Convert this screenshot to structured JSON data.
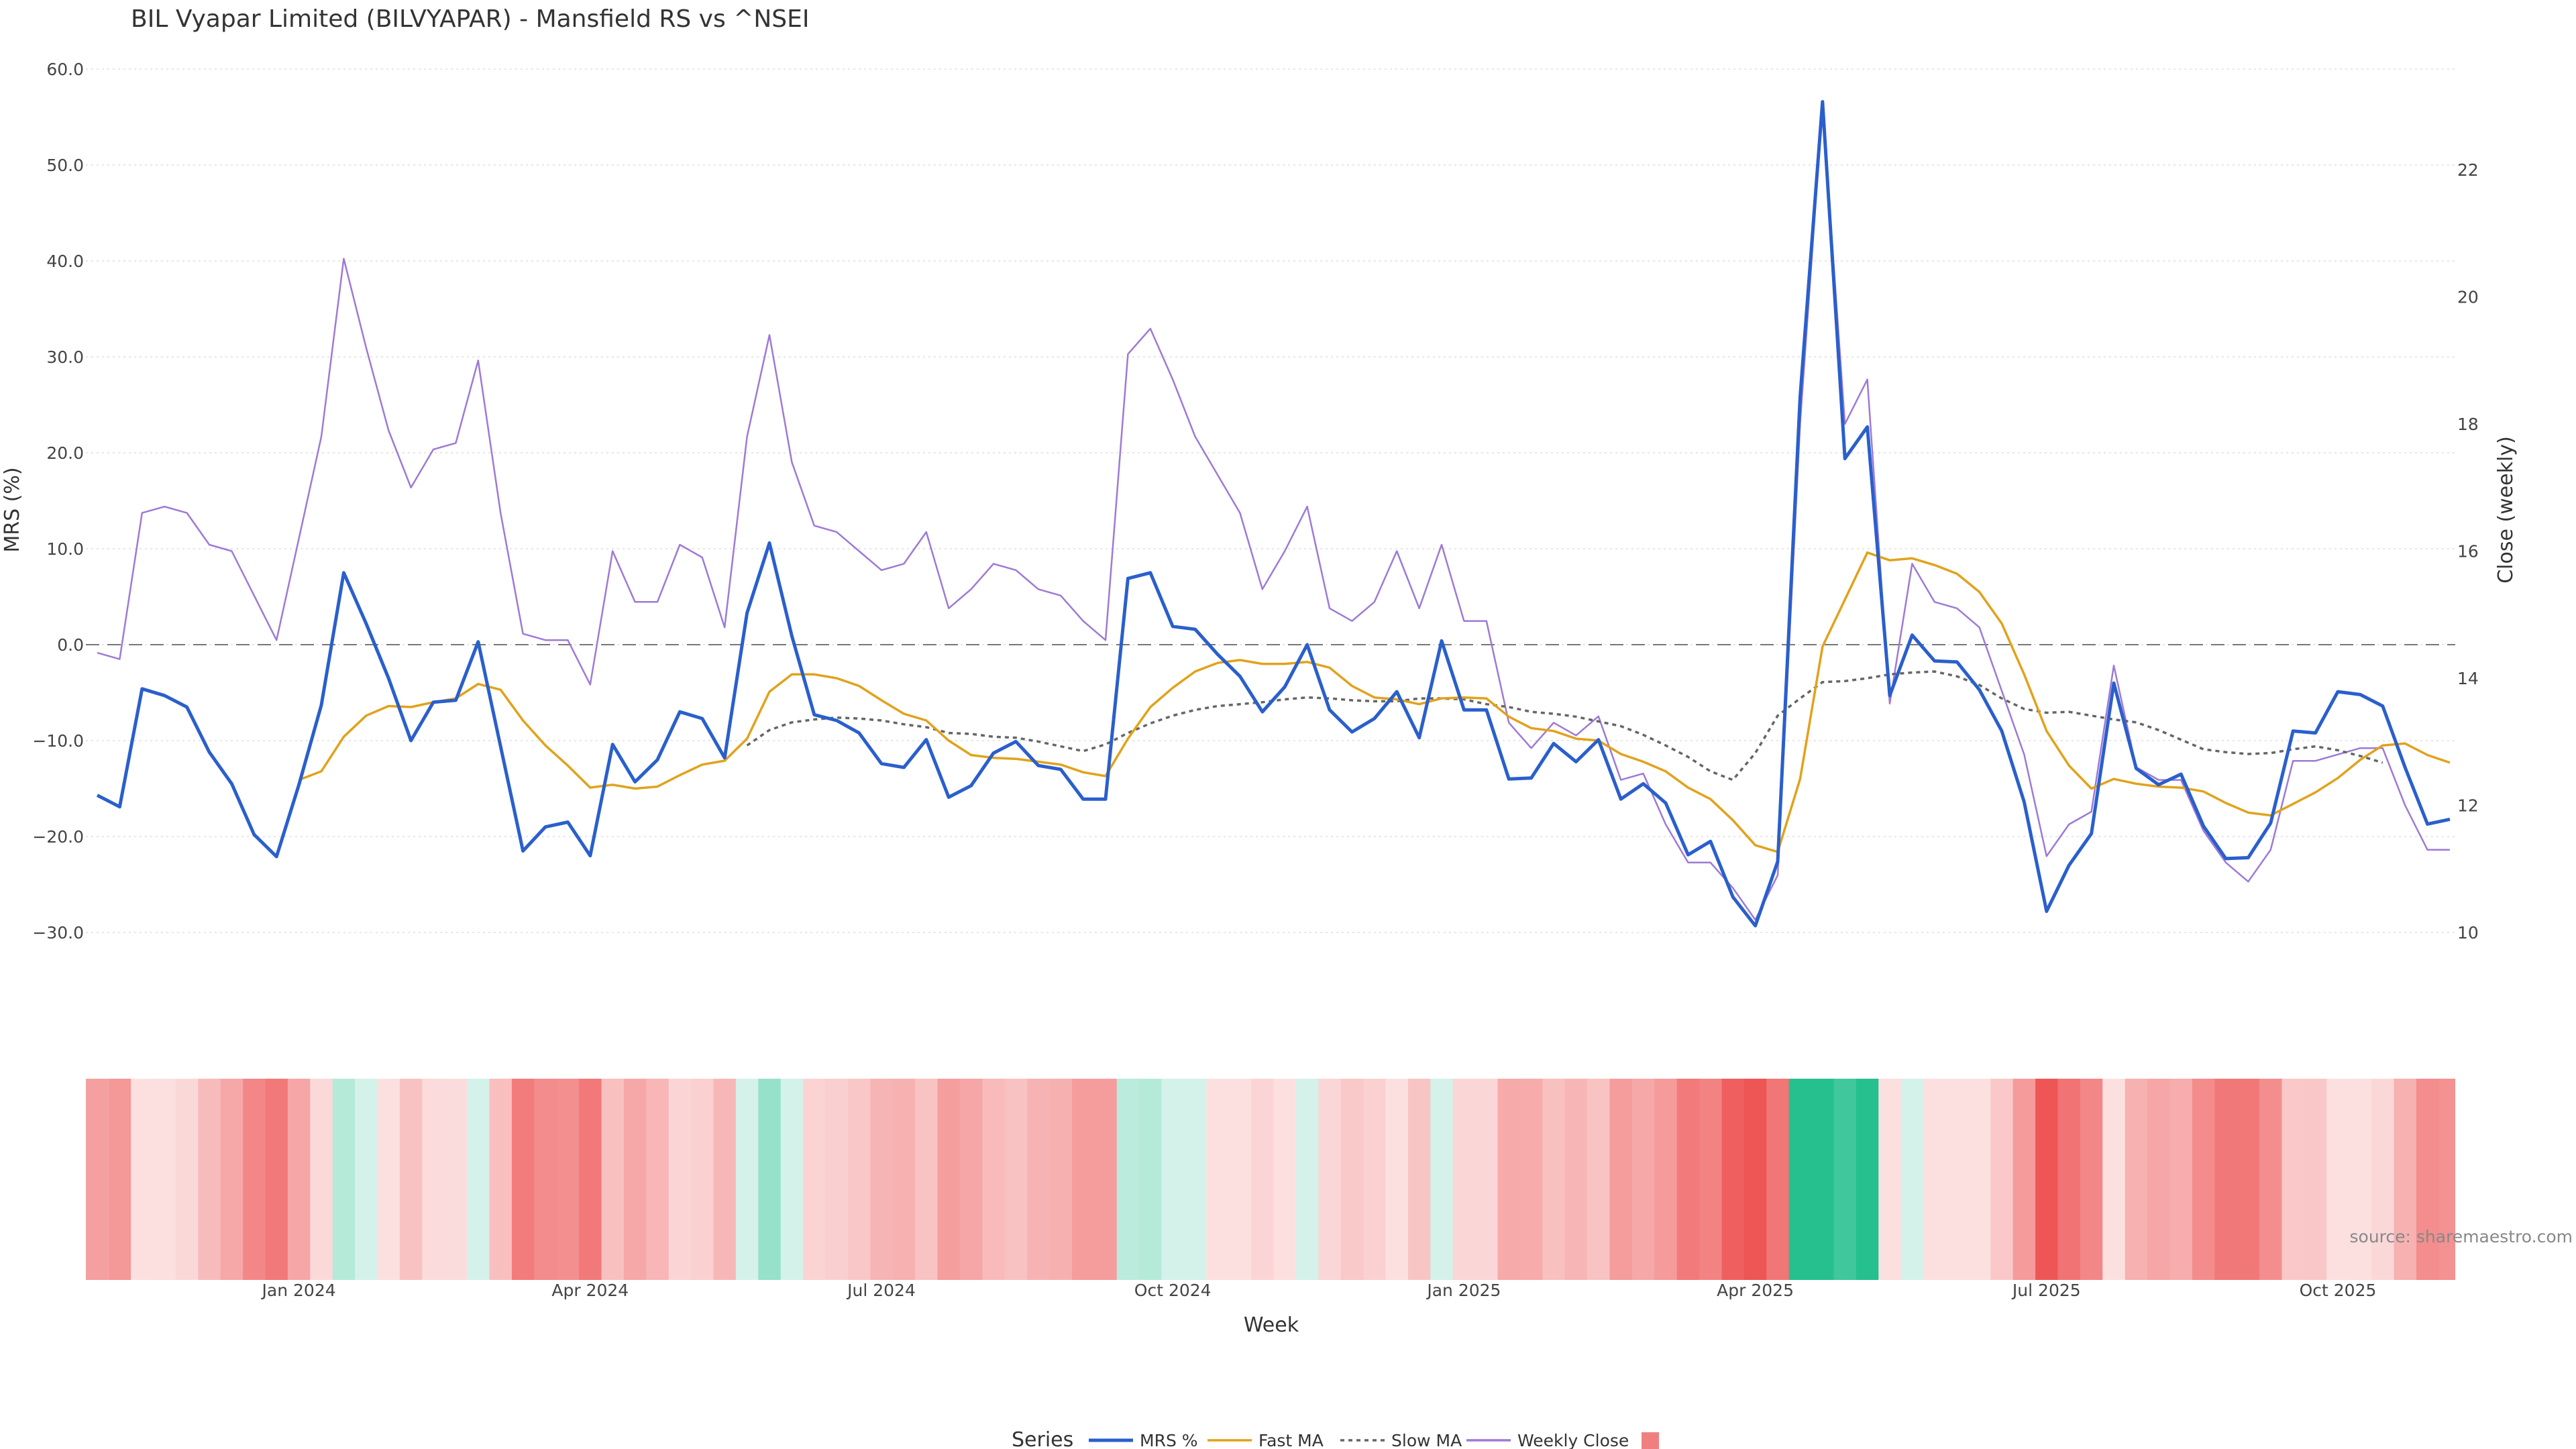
{
  "chart_data": {
    "type": "line",
    "title": "BIL Vyapar Limited (BILVYAPAR) - Mansfield RS vs ^NSEI",
    "xlabel": "Week",
    "ylabel_left": "MRS (%)",
    "ylabel_right": "Close (weekly)",
    "y_left_ticks": [
      "60.0",
      "50.0",
      "40.0",
      "30.0",
      "20.0",
      "10.0",
      "0.0",
      "−10.0",
      "−20.0",
      "−30.0"
    ],
    "y_left_range": [
      -30,
      60
    ],
    "y_right_ticks": [
      "22",
      "20",
      "18",
      "16",
      "14",
      "12",
      "10"
    ],
    "y_right_range": [
      10,
      22
    ],
    "x_ticks": [
      "Jan 2024",
      "Apr 2024",
      "Jul 2024",
      "Oct 2024",
      "Jan 2025",
      "Apr 2025",
      "Jul 2025",
      "Oct 2025"
    ],
    "x_tick_week_index": [
      9,
      22,
      35,
      48,
      61,
      74,
      87,
      100
    ],
    "reference_line": 0,
    "grid": true,
    "legend_title": "Series",
    "legend_position": "bottom",
    "source_text": "source: sharemaestro.com",
    "series": [
      {
        "name": "MRS %",
        "color": "#2a5fcc",
        "axis": "left",
        "style": "solid",
        "values": [
          -15.7,
          -16.9,
          -4.6,
          -5.3,
          -6.5,
          -11.2,
          -14.5,
          -19.8,
          -22.1,
          -14.6,
          -6.3,
          7.5,
          2.2,
          -3.5,
          -10.0,
          -6.0,
          -5.8,
          0.3,
          -10.6,
          -21.5,
          -19.0,
          -18.5,
          -22.0,
          -10.4,
          -14.3,
          -12.0,
          -7.0,
          -7.7,
          -11.8,
          3.3,
          10.6,
          0.9,
          -7.3,
          -7.9,
          -9.2,
          -12.4,
          -12.8,
          -9.9,
          -15.9,
          -14.7,
          -11.3,
          -10.1,
          -12.6,
          -13.0,
          -16.1,
          -16.1,
          6.9,
          7.5,
          1.9,
          1.6,
          -1.0,
          -3.3,
          -7.0,
          -4.4,
          0.0,
          -6.8,
          -9.1,
          -7.7,
          -4.9,
          -9.7,
          0.4,
          -6.8,
          -6.8,
          -14.0,
          -13.9,
          -10.3,
          -12.2,
          -9.9,
          -16.1,
          -14.5,
          -16.5,
          -21.9,
          -20.5,
          -26.3,
          -29.3,
          -22.6,
          25.8,
          56.6,
          19.4,
          22.7,
          -5.3,
          1.0,
          -1.7,
          -1.8,
          -4.7,
          -9.0,
          -16.4,
          -27.8,
          -23.0,
          -19.7,
          -4.0,
          -12.9,
          -14.6,
          -13.5,
          -18.9,
          -22.3,
          -22.2,
          -18.6,
          -9.0,
          -9.2,
          -4.9,
          -5.2,
          -6.4,
          -12.8,
          -18.7,
          -18.2
        ]
      },
      {
        "name": "Fast MA",
        "color": "#e1a21c",
        "axis": "left",
        "style": "solid",
        "start": 9,
        "values": [
          -14.1,
          -13.2,
          -9.6,
          -7.4,
          -6.4,
          -6.5,
          -6.0,
          -5.6,
          -4.1,
          -4.7,
          -7.9,
          -10.5,
          -12.6,
          -14.9,
          -14.6,
          -15.0,
          -14.8,
          -13.6,
          -12.5,
          -12.1,
          -9.8,
          -4.9,
          -3.1,
          -3.1,
          -3.5,
          -4.3,
          -5.8,
          -7.2,
          -7.9,
          -10.0,
          -11.5,
          -11.8,
          -11.9,
          -12.2,
          -12.5,
          -13.3,
          -13.7,
          -9.8,
          -6.5,
          -4.5,
          -2.8,
          -1.9,
          -1.6,
          -2.0,
          -2.0,
          -1.8,
          -2.4,
          -4.3,
          -5.5,
          -5.7,
          -6.2,
          -5.6,
          -5.5,
          -5.6,
          -7.5,
          -8.7,
          -9.0,
          -9.8,
          -10.0,
          -11.4,
          -12.2,
          -13.2,
          -14.9,
          -16.1,
          -18.3,
          -20.9,
          -21.6,
          -14.0,
          -0.2,
          4.7,
          9.6,
          8.8,
          9.0,
          8.3,
          7.4,
          5.5,
          2.2,
          -3.1,
          -9.0,
          -12.6,
          -15.0,
          -14.0,
          -14.5,
          -14.8,
          -14.9,
          -15.3,
          -16.5,
          -17.5,
          -17.8,
          -16.6,
          -15.4,
          -13.9,
          -12.0,
          -10.5,
          -10.3,
          -11.5,
          -12.3
        ]
      },
      {
        "name": "Slow MA",
        "color": "#666666",
        "axis": "left",
        "style": "dotted",
        "start": 29,
        "values": [
          -10.5,
          -8.9,
          -8.1,
          -7.8,
          -7.6,
          -7.7,
          -7.9,
          -8.3,
          -8.6,
          -9.2,
          -9.3,
          -9.6,
          -9.7,
          -10.1,
          -10.6,
          -11.1,
          -10.4,
          -9.2,
          -8.2,
          -7.4,
          -6.8,
          -6.4,
          -6.2,
          -6.0,
          -5.7,
          -5.5,
          -5.6,
          -5.8,
          -5.9,
          -5.9,
          -5.6,
          -5.6,
          -5.7,
          -6.2,
          -6.5,
          -7.0,
          -7.2,
          -7.5,
          -8.0,
          -8.5,
          -9.4,
          -10.5,
          -11.7,
          -13.2,
          -14.1,
          -11.3,
          -7.4,
          -5.6,
          -3.9,
          -3.8,
          -3.5,
          -3.1,
          -2.9,
          -2.8,
          -3.3,
          -4.2,
          -5.6,
          -6.7,
          -7.1,
          -7.0,
          -7.4,
          -7.8,
          -8.1,
          -8.9,
          -9.9,
          -10.9,
          -11.2,
          -11.4,
          -11.3,
          -10.9,
          -10.6,
          -11.0,
          -11.6,
          -12.3
        ]
      },
      {
        "name": "Weekly Close",
        "color": "#9d7ad6",
        "axis": "right",
        "style": "solid",
        "values": [
          14.4,
          14.3,
          16.6,
          16.7,
          16.6,
          16.1,
          16.0,
          15.3,
          14.6,
          16.2,
          17.8,
          20.6,
          19.2,
          17.9,
          17.0,
          17.6,
          17.7,
          19.0,
          16.6,
          14.7,
          14.6,
          14.6,
          13.9,
          16.0,
          15.2,
          15.2,
          16.1,
          15.9,
          14.8,
          17.8,
          19.4,
          17.4,
          16.4,
          16.3,
          16.0,
          15.7,
          15.8,
          16.3,
          15.1,
          15.4,
          15.8,
          15.7,
          15.4,
          15.3,
          14.9,
          14.6,
          19.1,
          19.5,
          18.7,
          17.8,
          17.2,
          16.6,
          15.4,
          16.0,
          16.7,
          15.1,
          14.9,
          15.2,
          16.0,
          15.1,
          16.1,
          14.9,
          14.9,
          13.3,
          12.9,
          13.3,
          13.1,
          13.4,
          12.4,
          12.5,
          11.7,
          11.1,
          11.1,
          10.7,
          10.2,
          10.9,
          18.0,
          23.0,
          18.0,
          18.7,
          13.6,
          15.8,
          15.2,
          15.1,
          14.8,
          13.8,
          12.8,
          11.2,
          11.7,
          11.9,
          14.2,
          12.6,
          12.4,
          12.4,
          11.6,
          11.1,
          10.8,
          11.3,
          12.7,
          12.7,
          12.8,
          12.9,
          12.9,
          12.0,
          11.3,
          11.3
        ]
      }
    ],
    "heatmap_strip": {
      "description_colors": "red = negative MRS, green = positive MRS",
      "negative_color": "#ee5555",
      "positive_color": "#26c08f"
    }
  }
}
